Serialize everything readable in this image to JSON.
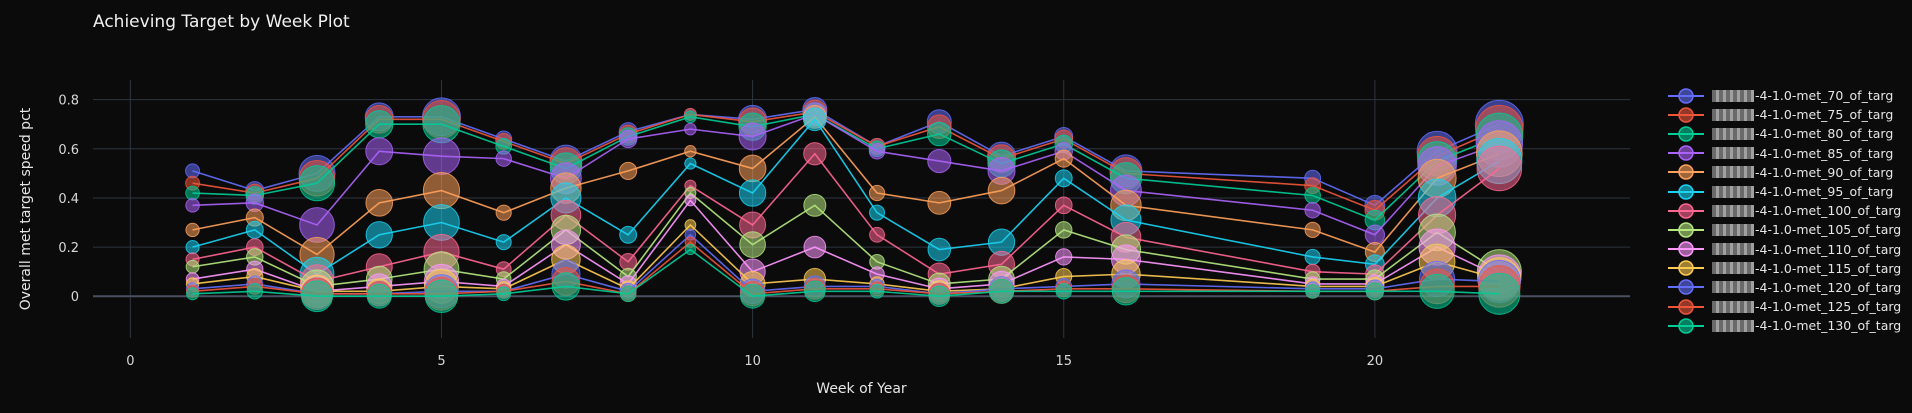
{
  "chart_data": {
    "type": "scatter",
    "mode": "lines+markers (bubble)",
    "title": "Achieving Target by Week Plot",
    "xlabel": "Week of Year",
    "ylabel": "Overall met target speed pct",
    "xlim": [
      -0.6,
      24.1
    ],
    "ylim": [
      -0.17,
      0.88
    ],
    "xticks": [
      0,
      5,
      10,
      15,
      20
    ],
    "yticks": [
      0,
      0.2,
      0.4,
      0.6,
      0.8
    ],
    "xtick_labels": [
      "0",
      "5",
      "10",
      "15",
      "20"
    ],
    "ytick_labels": [
      "0",
      "0.2",
      "0.4",
      "0.6",
      "0.8"
    ],
    "grid": true,
    "legend_position": "right",
    "x": [
      1,
      2,
      3,
      4,
      5,
      6,
      7,
      8,
      9,
      10,
      11,
      12,
      13,
      14,
      15,
      16,
      19,
      20,
      21,
      22
    ],
    "bubble_size_ref": [
      7,
      9,
      18,
      14,
      19,
      8,
      16,
      9,
      6,
      14,
      12,
      8,
      12,
      14,
      9,
      16,
      8,
      10,
      20,
      24
    ],
    "series": [
      {
        "name": "-4-1.0-met_70_of_targ",
        "color": "#636EFA",
        "values": [
          0.51,
          0.43,
          0.5,
          0.73,
          0.73,
          0.64,
          0.55,
          0.67,
          0.74,
          0.72,
          0.76,
          0.61,
          0.71,
          0.57,
          0.65,
          0.51,
          0.48,
          0.37,
          0.59,
          0.7
        ]
      },
      {
        "name": "-4-1.0-met_75_of_targ",
        "color": "#EF553B",
        "values": [
          0.46,
          0.42,
          0.48,
          0.72,
          0.72,
          0.63,
          0.54,
          0.66,
          0.74,
          0.71,
          0.75,
          0.61,
          0.69,
          0.56,
          0.64,
          0.5,
          0.45,
          0.35,
          0.57,
          0.68
        ]
      },
      {
        "name": "-4-1.0-met_80_of_targ",
        "color": "#00CC96",
        "values": [
          0.42,
          0.41,
          0.46,
          0.7,
          0.7,
          0.61,
          0.52,
          0.65,
          0.73,
          0.69,
          0.74,
          0.6,
          0.66,
          0.54,
          0.62,
          0.48,
          0.41,
          0.31,
          0.55,
          0.65
        ]
      },
      {
        "name": "-4-1.0-met_85_of_targ",
        "color": "#AB63FA",
        "values": [
          0.37,
          0.38,
          0.29,
          0.59,
          0.57,
          0.56,
          0.48,
          0.64,
          0.68,
          0.65,
          0.74,
          0.59,
          0.55,
          0.51,
          0.59,
          0.43,
          0.35,
          0.25,
          0.53,
          0.62
        ]
      },
      {
        "name": "-4-1.0-met_90_of_targ",
        "color": "#FFA15A",
        "values": [
          0.27,
          0.32,
          0.17,
          0.38,
          0.43,
          0.34,
          0.44,
          0.51,
          0.59,
          0.52,
          0.73,
          0.42,
          0.38,
          0.43,
          0.56,
          0.37,
          0.27,
          0.18,
          0.48,
          0.58
        ]
      },
      {
        "name": "-4-1.0-met_95_of_targ",
        "color": "#19D3F3",
        "values": [
          0.2,
          0.27,
          0.09,
          0.25,
          0.3,
          0.22,
          0.4,
          0.25,
          0.54,
          0.42,
          0.72,
          0.34,
          0.19,
          0.22,
          0.48,
          0.31,
          0.16,
          0.13,
          0.4,
          0.55
        ]
      },
      {
        "name": "-4-1.0-met_100_of_targ",
        "color": "#FF6692",
        "values": [
          0.15,
          0.2,
          0.06,
          0.12,
          0.18,
          0.11,
          0.33,
          0.14,
          0.45,
          0.29,
          0.58,
          0.25,
          0.09,
          0.13,
          0.37,
          0.24,
          0.1,
          0.09,
          0.33,
          0.52
        ]
      },
      {
        "name": "-4-1.0-met_105_of_targ",
        "color": "#B6E880",
        "values": [
          0.12,
          0.16,
          0.04,
          0.07,
          0.11,
          0.07,
          0.27,
          0.08,
          0.42,
          0.21,
          0.37,
          0.14,
          0.05,
          0.07,
          0.27,
          0.19,
          0.07,
          0.07,
          0.26,
          0.1
        ]
      },
      {
        "name": "-4-1.0-met_110_of_targ",
        "color": "#FF97FF",
        "values": [
          0.07,
          0.11,
          0.02,
          0.04,
          0.06,
          0.04,
          0.21,
          0.05,
          0.39,
          0.1,
          0.2,
          0.09,
          0.03,
          0.05,
          0.16,
          0.15,
          0.05,
          0.05,
          0.2,
          0.08
        ]
      },
      {
        "name": "-4-1.0-met_115_of_targ",
        "color": "#FECB52",
        "values": [
          0.05,
          0.08,
          0.02,
          0.02,
          0.04,
          0.03,
          0.15,
          0.03,
          0.29,
          0.05,
          0.07,
          0.05,
          0.02,
          0.03,
          0.08,
          0.09,
          0.04,
          0.04,
          0.14,
          0.07
        ]
      },
      {
        "name": "-4-1.0-met_120_of_targ",
        "color": "#636EFA",
        "values": [
          0.03,
          0.05,
          0.01,
          0.01,
          0.02,
          0.02,
          0.09,
          0.02,
          0.25,
          0.02,
          0.04,
          0.04,
          0.01,
          0.03,
          0.04,
          0.05,
          0.03,
          0.03,
          0.07,
          0.06
        ]
      },
      {
        "name": "-4-1.0-met_125_of_targ",
        "color": "#EF553B",
        "values": [
          0.02,
          0.04,
          0.01,
          0.01,
          0.01,
          0.02,
          0.06,
          0.01,
          0.22,
          0.01,
          0.03,
          0.03,
          0.01,
          0.02,
          0.03,
          0.03,
          0.02,
          0.02,
          0.04,
          0.04
        ]
      },
      {
        "name": "-4-1.0-met_130_of_targ",
        "color": "#00CC96",
        "values": [
          0.01,
          0.02,
          0.0,
          0.0,
          0.0,
          0.01,
          0.04,
          0.01,
          0.19,
          0.0,
          0.02,
          0.02,
          0.0,
          0.02,
          0.02,
          0.02,
          0.02,
          0.02,
          0.02,
          0.01
        ]
      }
    ]
  }
}
